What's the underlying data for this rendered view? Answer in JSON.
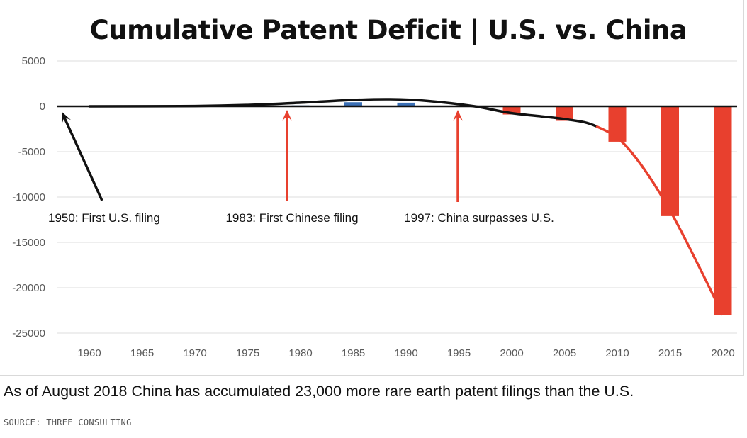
{
  "chart_data": {
    "type": "bar",
    "title": "Cumulative Patent Deficit | U.S. vs. China",
    "xlabel": "",
    "ylabel": "",
    "x_ticks": [
      "1960",
      "1965",
      "1970",
      "1975",
      "1980",
      "1985",
      "1990",
      "1995",
      "2000",
      "2005",
      "2010",
      "2015",
      "2020"
    ],
    "y_ticks": [
      "5000",
      "0",
      "-5000",
      "-10000",
      "-15000",
      "-20000",
      "-25000"
    ],
    "ylim": [
      -25000,
      5000
    ],
    "grid": true,
    "bars": [
      {
        "x": 1980,
        "value": 100,
        "color": "blue"
      },
      {
        "x": 1985,
        "value": 450,
        "color": "blue"
      },
      {
        "x": 1990,
        "value": 400,
        "color": "blue"
      },
      {
        "x": 2000,
        "value": -900,
        "color": "red"
      },
      {
        "x": 2005,
        "value": -1600,
        "color": "red"
      },
      {
        "x": 2010,
        "value": -3900,
        "color": "red"
      },
      {
        "x": 2015,
        "value": -12100,
        "color": "red"
      },
      {
        "x": 2020,
        "value": -23000,
        "color": "red"
      }
    ],
    "trend_line": {
      "points": [
        {
          "x": 1960,
          "y": 0
        },
        {
          "x": 1970,
          "y": 30
        },
        {
          "x": 1975,
          "y": 150
        },
        {
          "x": 1980,
          "y": 400
        },
        {
          "x": 1985,
          "y": 700
        },
        {
          "x": 1988.5,
          "y": 780
        },
        {
          "x": 1992,
          "y": 600
        },
        {
          "x": 1996.5,
          "y": 0
        },
        {
          "x": 2000,
          "y": -750
        },
        {
          "x": 2005,
          "y": -1400
        },
        {
          "x": 2008,
          "y": -2200
        },
        {
          "x": 2011,
          "y": -4600
        },
        {
          "x": 2015,
          "y": -11500
        },
        {
          "x": 2020,
          "y": -23000
        }
      ],
      "black_until": 2008,
      "colors": {
        "black": "#111111",
        "red": "#e8402e"
      }
    },
    "annotations": [
      {
        "text": "1950: First U.S. filing",
        "target_x": 1960
      },
      {
        "text": "1983: First Chinese filing",
        "target_x": 1980
      },
      {
        "text": "1997: China surpasses U.S.",
        "target_x": 1996.5
      }
    ],
    "colors": {
      "red": "#e8402e",
      "blue": "#3a6fb5",
      "annot_black": "#111111",
      "annot_red": "#e8402e"
    }
  },
  "caption": "As of August 2018 China has accumulated 23,000 more rare earth patent filings than the U.S.",
  "source": "SOURCE: THREE CONSULTING"
}
